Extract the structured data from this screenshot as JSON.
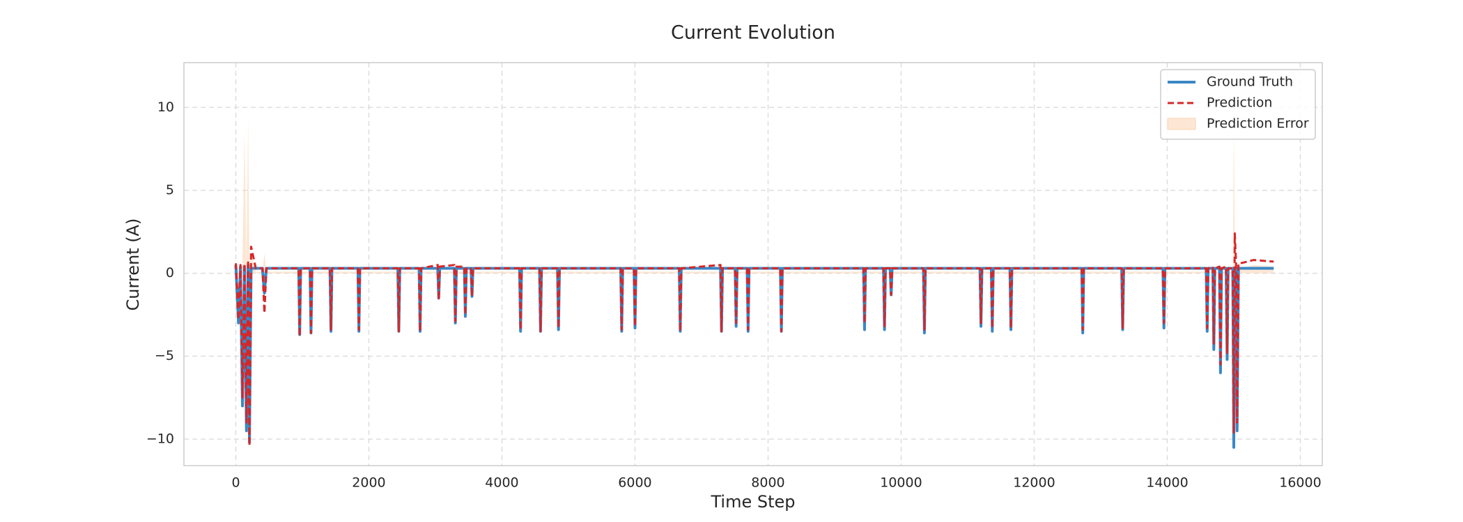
{
  "chart_data": {
    "type": "line",
    "title": "Current Evolution",
    "x_label": "Time Step",
    "y_label": "Current (A)",
    "x": [
      0,
      40,
      70,
      100,
      130,
      160,
      185,
      205,
      230,
      300,
      400,
      430,
      460,
      945,
      960,
      975,
      1115,
      1130,
      1145,
      1415,
      1430,
      1445,
      1835,
      1850,
      1865,
      2435,
      2450,
      2465,
      2755,
      2770,
      2785,
      3035,
      3050,
      3065,
      3285,
      3300,
      3315,
      3435,
      3450,
      3465,
      3535,
      3550,
      3565,
      4265,
      4280,
      4295,
      4565,
      4580,
      4595,
      4835,
      4850,
      4865,
      5785,
      5800,
      5815,
      5985,
      6000,
      6015,
      6665,
      6680,
      6695,
      7285,
      7300,
      7315,
      7505,
      7520,
      7535,
      7685,
      7700,
      7715,
      8185,
      8200,
      8215,
      9435,
      9450,
      9465,
      9735,
      9750,
      9765,
      9835,
      9850,
      9865,
      10335,
      10350,
      10365,
      11185,
      11200,
      11215,
      11355,
      11370,
      11385,
      11635,
      11650,
      11665,
      12715,
      12730,
      12745,
      13315,
      13330,
      13345,
      13935,
      13950,
      13965,
      14585,
      14600,
      14615,
      14685,
      14700,
      14715,
      14785,
      14800,
      14815,
      14885,
      14900,
      14915,
      14985,
      15000,
      15015,
      15035,
      15050,
      15070,
      15100,
      15300,
      15600
    ],
    "series": [
      {
        "name": "Ground Truth",
        "color": "#3a87c5",
        "style": "solid",
        "values": [
          0.5,
          -3,
          0.4,
          -8,
          0.4,
          -9.5,
          0.5,
          -10.2,
          0.3,
          0.3,
          0.3,
          -1.2,
          0.3,
          0.3,
          -3.7,
          0.3,
          0.3,
          -3.6,
          0.3,
          0.3,
          -3.5,
          0.3,
          0.3,
          -3.5,
          0.3,
          0.3,
          -3.5,
          0.3,
          0.3,
          -3.5,
          0.3,
          0.3,
          -1.5,
          0.3,
          0.3,
          -3,
          0.3,
          0.3,
          -2.6,
          0.3,
          0.3,
          -1.4,
          0.3,
          0.3,
          -3.5,
          0.3,
          0.3,
          -3.5,
          0.3,
          0.3,
          -3.4,
          0.3,
          0.3,
          -3.5,
          0.3,
          0.3,
          -3.3,
          0.3,
          0.3,
          -3.5,
          0.3,
          0.3,
          -3.5,
          0.3,
          0.3,
          -3.2,
          0.3,
          0.3,
          -3.5,
          0.3,
          0.3,
          -3.5,
          0.3,
          0.3,
          -3.4,
          0.3,
          0.3,
          -3.4,
          0.3,
          0.3,
          -1.3,
          0.3,
          0.3,
          -3.6,
          0.3,
          0.3,
          -3.2,
          0.3,
          0.3,
          -3.5,
          0.3,
          0.3,
          -3.4,
          0.3,
          0.3,
          -3.6,
          0.3,
          0.3,
          -3.4,
          0.3,
          0.3,
          -3.3,
          0.3,
          0.3,
          -3.5,
          0.3,
          0.3,
          -4.6,
          0.3,
          0.3,
          -6,
          0.3,
          0.3,
          -5.2,
          0.3,
          0.3,
          -10.5,
          0.3,
          0.3,
          -9.5,
          0.3,
          0.3,
          0.3,
          0.3
        ]
      },
      {
        "name": "Prediction",
        "color": "#d62728",
        "style": "dashed",
        "values": [
          0.6,
          -2.8,
          0.5,
          -7.5,
          0.6,
          -9,
          0.8,
          -10.4,
          1.6,
          0.3,
          0.3,
          -2.4,
          0.3,
          0.3,
          -3.8,
          0.3,
          0.3,
          -3.6,
          0.3,
          0.3,
          -3.4,
          0.3,
          0.3,
          -3.4,
          0.3,
          0.3,
          -3.5,
          0.3,
          0.3,
          -3.5,
          0.3,
          0.5,
          -1.6,
          0.4,
          0.5,
          -2.9,
          0.4,
          0.4,
          -2.5,
          0.3,
          0.3,
          -1.4,
          0.3,
          0.3,
          -3.4,
          0.3,
          0.3,
          -3.5,
          0.3,
          0.3,
          -3.3,
          0.3,
          0.3,
          -3.4,
          0.3,
          0.3,
          -3.2,
          0.3,
          0.3,
          -3.5,
          0.3,
          0.5,
          -3.5,
          0.3,
          0.3,
          -3,
          0.3,
          0.3,
          -3.4,
          0.3,
          0.3,
          -3.5,
          0.3,
          0.3,
          -3,
          0.3,
          0.3,
          -3.2,
          0.3,
          0.3,
          -1.3,
          0.3,
          0.3,
          -3.4,
          0.3,
          0.3,
          -3,
          0.3,
          0.3,
          -3.3,
          0.3,
          0.3,
          -3.3,
          0.3,
          0.3,
          -3.4,
          0.3,
          0.3,
          -3.3,
          0.3,
          0.3,
          -3,
          0.3,
          0.3,
          -3.3,
          0.3,
          0.4,
          -4.3,
          0.3,
          0.4,
          -5.5,
          0.3,
          0.4,
          -4.8,
          0.3,
          0.3,
          -9.6,
          2.4,
          0.5,
          -9,
          0.6,
          0.6,
          0.8,
          0.7
        ]
      },
      {
        "name": "Prediction Error",
        "color": "#fbd3b0",
        "style": "area",
        "values": [
          0.2,
          0.3,
          0.2,
          0.5,
          8.6,
          0.6,
          9.4,
          0.3,
          1.2,
          0.1,
          0.1,
          1.2,
          0.1,
          0.1,
          0.2,
          0.1,
          0.1,
          0.2,
          0.1,
          0.1,
          0.2,
          0.1,
          0.1,
          0.2,
          0.1,
          0.1,
          0.2,
          0.1,
          0.1,
          0.2,
          0.1,
          0.1,
          0.2,
          0.1,
          0.1,
          0.2,
          0.1,
          0.1,
          0.2,
          0.1,
          0.1,
          0.2,
          0.1,
          0.1,
          0.2,
          0.1,
          0.1,
          0.2,
          0.1,
          0.1,
          0.2,
          0.1,
          0.1,
          0.2,
          0.1,
          0.1,
          0.2,
          0.1,
          0.1,
          0.2,
          0.1,
          0.1,
          0.2,
          0.1,
          0.1,
          0.2,
          0.1,
          0.1,
          0.2,
          0.1,
          0.1,
          0.2,
          0.1,
          0.1,
          0.2,
          0.1,
          0.1,
          0.2,
          0.1,
          0.1,
          0.2,
          0.1,
          0.1,
          0.2,
          0.1,
          0.1,
          0.2,
          0.1,
          0.1,
          0.2,
          0.1,
          0.1,
          0.2,
          0.1,
          0.1,
          0.2,
          0.1,
          0.1,
          0.2,
          0.1,
          0.1,
          0.2,
          0.1,
          0.1,
          0.2,
          0.1,
          0.1,
          0.2,
          0.1,
          0.1,
          0.2,
          0.1,
          0.1,
          0.2,
          0.1,
          0.1,
          9,
          2.1,
          0.1,
          0.2,
          0.1,
          0.3,
          0.5,
          0.4
        ]
      }
    ],
    "xlim": [
      -780,
      16330
    ],
    "ylim": [
      -11.6,
      12.7
    ],
    "xticks": [
      0,
      2000,
      4000,
      6000,
      8000,
      10000,
      12000,
      14000,
      16000
    ],
    "yticks": [
      {
        "value": -10,
        "label": "−10"
      },
      {
        "value": -5,
        "label": "−5"
      },
      0,
      5,
      10
    ],
    "grid": true,
    "legend": "upper right"
  }
}
